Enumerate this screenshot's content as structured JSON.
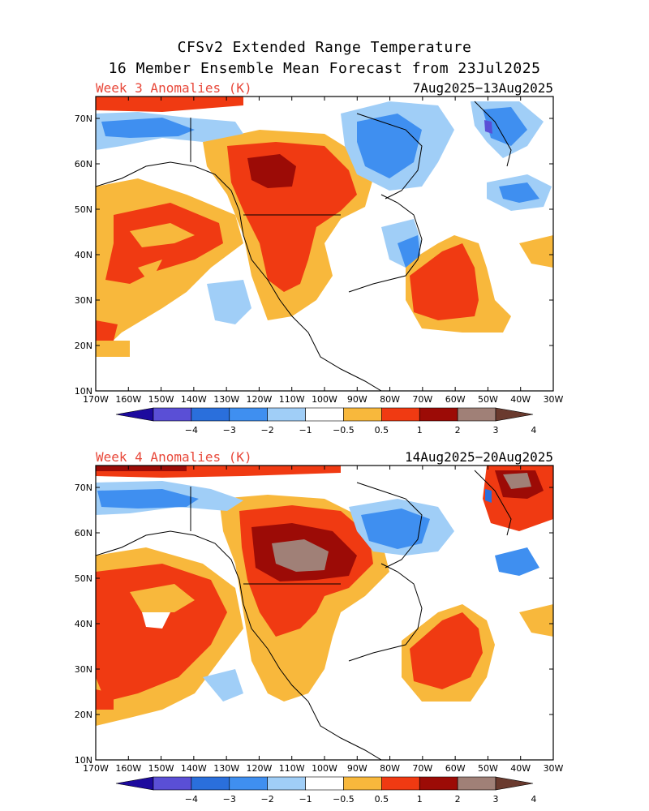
{
  "title_line1": "CFSv2 Extended Range Temperature",
  "title_line2": "16 Member Ensemble Mean Forecast from 23Jul2025",
  "lat_labels": [
    "70N",
    "60N",
    "50N",
    "40N",
    "30N",
    "20N",
    "10N"
  ],
  "lon_labels": [
    "170W",
    "160W",
    "150W",
    "140W",
    "130W",
    "120W",
    "110W",
    "100W",
    "90W",
    "80W",
    "70W",
    "60W",
    "50W",
    "40W",
    "30W"
  ],
  "colorbar": {
    "labels": [
      "−4",
      "−3",
      "−2",
      "−1",
      "−0.5",
      "0.5",
      "1",
      "2",
      "3",
      "4"
    ],
    "colors": [
      "#1d0a9e",
      "#5a4fd6",
      "#2a6fdc",
      "#3f8ff0",
      "#a0cef7",
      "#ffffff",
      "#f8b83c",
      "#f03a12",
      "#9c0b06",
      "#a08077",
      "#6a3a2e"
    ]
  },
  "panels": [
    {
      "week_label": "Week 3 Anomalies (K)",
      "date_range": "7Aug2025−13Aug2025"
    },
    {
      "week_label": "Week 4 Anomalies (K)",
      "date_range": "14Aug2025−20Aug2025"
    }
  ]
}
